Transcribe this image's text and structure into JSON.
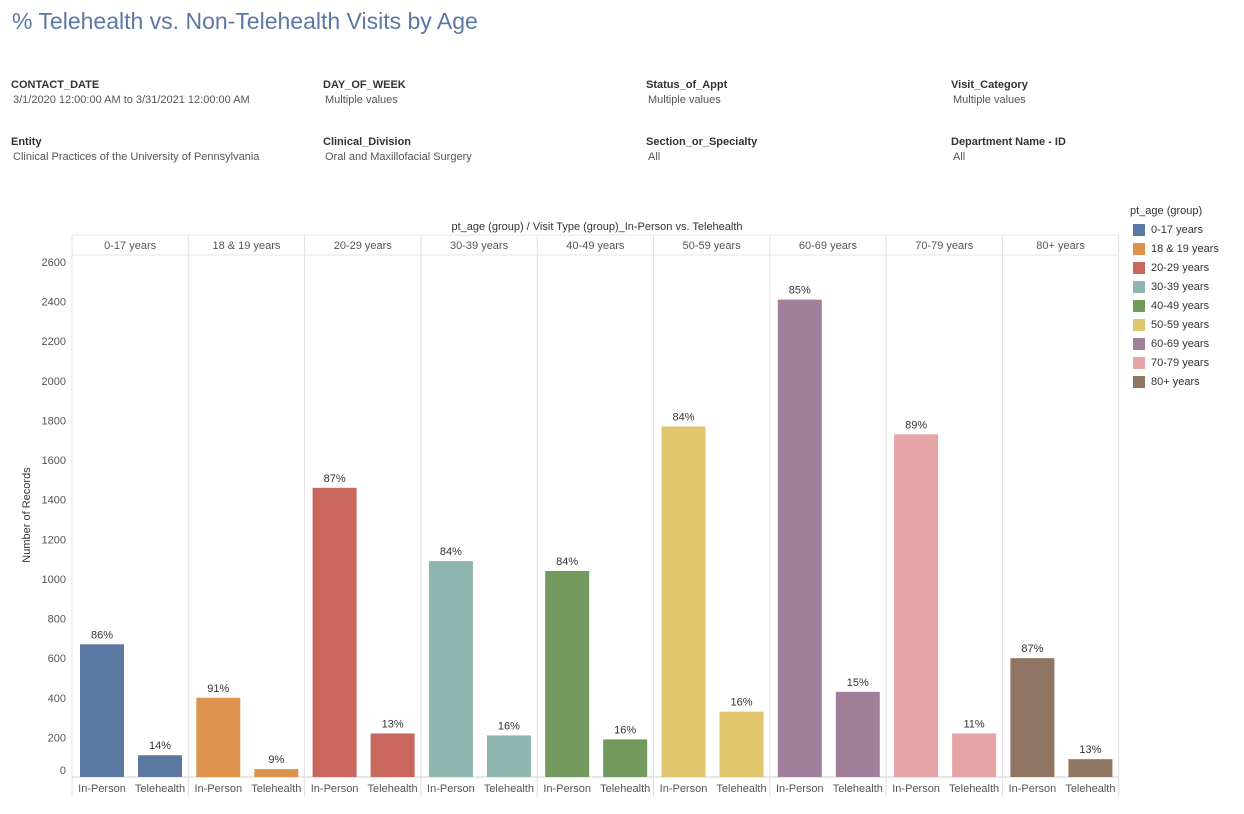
{
  "title": "% Telehealth vs. Non-Telehealth Visits by Age",
  "filters": [
    {
      "name": "CONTACT_DATE",
      "value": "3/1/2020 12:00:00 AM to 3/31/2021 12:00:00 AM"
    },
    {
      "name": "DAY_OF_WEEK",
      "value": "Multiple values"
    },
    {
      "name": "Status_of_Appt",
      "value": "Multiple values"
    },
    {
      "name": "Visit_Category",
      "value": "Multiple values"
    },
    {
      "name": "Entity",
      "value": "Clinical Practices of the University of Pennsylvania"
    },
    {
      "name": "Clinical_Division",
      "value": "Oral and Maxillofacial Surgery"
    },
    {
      "name": "Section_or_Specialty",
      "value": "All"
    },
    {
      "name": "Department Name - ID",
      "value": "All"
    }
  ],
  "chart_data": {
    "type": "bar",
    "header": "pt_age (group)  /  Visit Type (group)_In-Person vs. Telehealth",
    "ylabel": "Number of Records",
    "ylim": [
      0,
      2600
    ],
    "yticks": [
      0,
      200,
      400,
      600,
      800,
      1000,
      1200,
      1400,
      1600,
      1800,
      2000,
      2200,
      2400,
      2600
    ],
    "subcategories": [
      "In-Person",
      "Telehealth"
    ],
    "legend_title": "pt_age (group)",
    "groups": [
      {
        "name": "0-17 years",
        "color": "#5b78a2",
        "values": [
          670,
          110
        ],
        "labels": [
          "86%",
          "14%"
        ]
      },
      {
        "name": "18 & 19 years",
        "color": "#dd924e",
        "values": [
          400,
          40
        ],
        "labels": [
          "91%",
          "9%"
        ]
      },
      {
        "name": "20-29 years",
        "color": "#c9665e",
        "values": [
          1460,
          220
        ],
        "labels": [
          "87%",
          "13%"
        ]
      },
      {
        "name": "30-39 years",
        "color": "#8fb5b1",
        "values": [
          1090,
          210
        ],
        "labels": [
          "84%",
          "16%"
        ]
      },
      {
        "name": "40-49 years",
        "color": "#739a5d",
        "values": [
          1040,
          190
        ],
        "labels": [
          "84%",
          "16%"
        ]
      },
      {
        "name": "50-59 years",
        "color": "#e2c66e",
        "values": [
          1770,
          330
        ],
        "labels": [
          "84%",
          "16%"
        ]
      },
      {
        "name": "60-69 years",
        "color": "#a17e9a",
        "values": [
          2410,
          430
        ],
        "labels": [
          "85%",
          "15%"
        ]
      },
      {
        "name": "70-79 years",
        "color": "#e7a4a6",
        "values": [
          1730,
          220
        ],
        "labels": [
          "89%",
          "11%"
        ]
      },
      {
        "name": "80+ years",
        "color": "#8f7562",
        "values": [
          600,
          90
        ],
        "labels": [
          "87%",
          "13%"
        ]
      }
    ]
  }
}
